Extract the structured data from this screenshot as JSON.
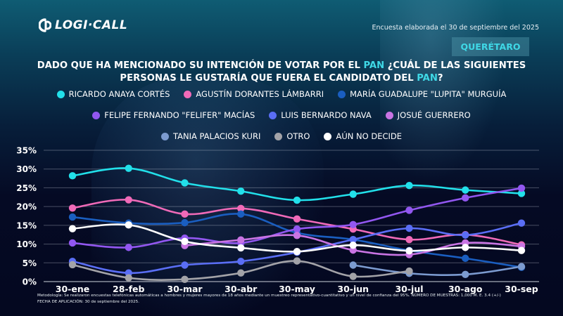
{
  "brand": {
    "name": "LOGI·CALL",
    "logo_icon": "logicall-logo-icon"
  },
  "survey_date": "Encuesta elaborada el 30 de septiembre del 2025",
  "region": "QUERÉTARO",
  "question": {
    "part1": "DADO QUE HA MENCIONADO SU INTENCIÓN DE VOTAR POR EL ",
    "highlight1": "PAN",
    "part2": " ¿CUÁL DE LAS SIGUIENTES PERSONAS LE GUSTARÍA QUE FUERA EL CANDIDATO DEL ",
    "highlight2": "PAN",
    "part3": "?"
  },
  "accent_color": "#3fd8e6",
  "footnote": {
    "line1": "Metodología: Se realizaron encuestas telefónicas automáticas a hombres y mujeres mayores de 18 años mediante un muestreo representativo-cuantitativo y un nivel de confianza del 95%. NÚMERO DE MUESTRAS: 1,000 M. E. 3.4 (+/-)",
    "line2": "FECHA DE APLICACIÓN: 30 de septiembre del 2025."
  },
  "chart_data": {
    "type": "line",
    "title": "",
    "xlabel": "",
    "ylabel": "",
    "categories": [
      "30-ene",
      "28-feb",
      "30-mar",
      "30-abr",
      "30-may",
      "30-jun",
      "30-jul",
      "30-ago",
      "30-sep"
    ],
    "ylim": [
      0,
      35
    ],
    "yticks": [
      "0%",
      "5%",
      "10%",
      "15%",
      "20%",
      "25%",
      "30%",
      "35%"
    ],
    "ytick_values": [
      0,
      5,
      10,
      15,
      20,
      25,
      30,
      35
    ],
    "grid": true,
    "legend_position": "top",
    "series": [
      {
        "name": "RICARDO ANAYA CORTÉS",
        "color": "#22e0ea",
        "values": [
          28.2,
          30.2,
          26.3,
          24.1,
          21.7,
          23.3,
          25.6,
          24.4,
          23.5
        ]
      },
      {
        "name": "AGUSTÍN DORANTES LÁMBARRI",
        "color": "#f06ab8",
        "values": [
          19.6,
          21.8,
          18.0,
          19.5,
          16.7,
          14.0,
          11.2,
          12.5,
          9.8
        ]
      },
      {
        "name": "MARÍA GUADALUPE \"LUPITA\" MURGUÍA",
        "color": "#1a5ec0",
        "values": [
          17.2,
          15.6,
          15.7,
          18.0,
          13.0,
          11.2,
          8.3,
          6.2,
          3.8
        ]
      },
      {
        "name": "FELIPE FERNANDO \"FELIFER\" MACÍAS",
        "color": "#9257f0",
        "values": [
          10.3,
          9.1,
          11.6,
          10.3,
          14.0,
          15.2,
          19.0,
          22.3,
          24.9
        ]
      },
      {
        "name": "LUIS BERNARDO NAVA",
        "color": "#5a6ef5",
        "values": [
          5.4,
          2.3,
          4.4,
          5.4,
          7.8,
          11.2,
          14.2,
          12.4,
          15.6
        ]
      },
      {
        "name": "JOSUÉ GUERRERO",
        "color": "#c974e3",
        "values": [
          null,
          null,
          9.6,
          11.1,
          12.3,
          8.4,
          7.2,
          10.3,
          9.4
        ]
      },
      {
        "name": "TANIA PALACIOS KURI",
        "color": "#7c9bd0",
        "values": [
          null,
          null,
          null,
          null,
          null,
          4.4,
          2.2,
          1.9,
          4.0
        ]
      },
      {
        "name": "OTRO",
        "color": "#a3a3a8",
        "values": [
          4.5,
          1.0,
          0.6,
          2.3,
          5.5,
          1.4,
          2.8,
          null,
          null
        ]
      },
      {
        "name": "AÚN NO DECIDE",
        "color": "#ffffff",
        "values": [
          14.1,
          15.1,
          10.7,
          9.0,
          8.0,
          9.7,
          8.2,
          9.1,
          8.3
        ]
      }
    ]
  },
  "legend_rows": [
    [
      0,
      1,
      2
    ],
    [
      3,
      4,
      5
    ],
    [
      6,
      7,
      8
    ]
  ]
}
